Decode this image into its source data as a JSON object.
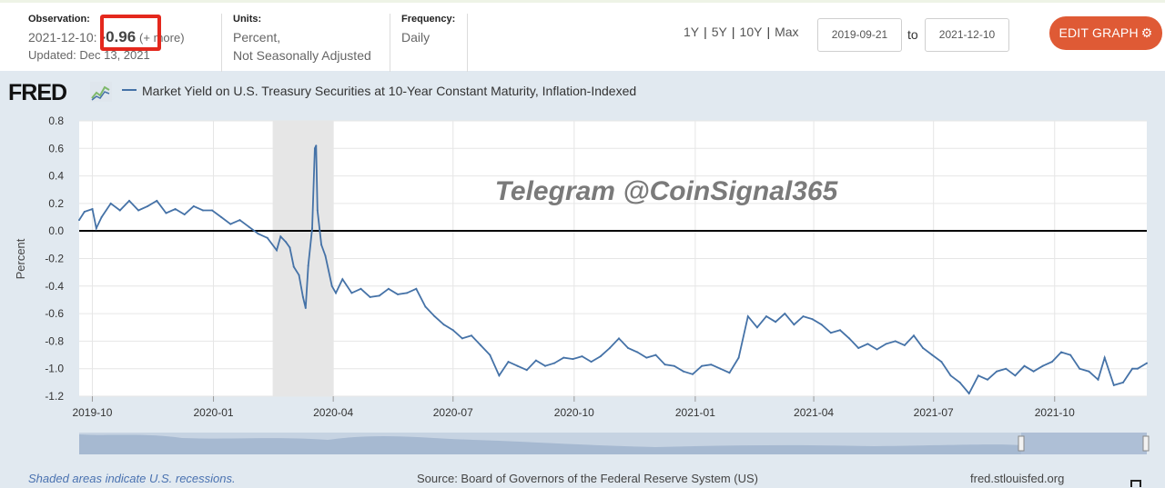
{
  "header": {
    "observation_label": "Observation:",
    "observation_date": "2021-12-10:",
    "observation_value": "-0.96",
    "observation_more": "(+ more)",
    "observation_updated": "Updated: Dec 13, 2021",
    "units_label": "Units:",
    "units_line1": "Percent,",
    "units_line2": "Not Seasonally Adjusted",
    "frequency_label": "Frequency:",
    "frequency_value": "Daily",
    "ranges": [
      "1Y",
      "5Y",
      "10Y",
      "Max"
    ],
    "date_from": "2019-09-21",
    "to_label": "to",
    "date_to": "2021-12-10",
    "edit_label": "EDIT GRAPH",
    "highlight_color": "#e4281d",
    "edit_color": "#df5a35"
  },
  "logo_text": "FRED",
  "watermark": "Telegram @CoinSignal365",
  "footer": {
    "recession_note": "Shaded areas indicate U.S. recessions.",
    "source": "Source: Board of Governors of the Federal Reserve System (US)",
    "site": "fred.stlouisfed.org"
  },
  "chart_data": {
    "type": "line",
    "title": "Market Yield on U.S. Treasury Securities at 10-Year Constant Maturity, Inflation-Indexed",
    "ylabel": "Percent",
    "xlabel": "",
    "ylim": [
      -1.2,
      0.8
    ],
    "yticks": [
      "0.8",
      "0.6",
      "0.4",
      "0.2",
      "0.0",
      "-0.2",
      "-0.4",
      "-0.6",
      "-0.8",
      "-1.0",
      "-1.2"
    ],
    "xticks": [
      "2019-10",
      "2020-01",
      "2020-04",
      "2020-07",
      "2020-10",
      "2021-01",
      "2021-04",
      "2021-07",
      "2021-10"
    ],
    "x_range": [
      "2019-09-21",
      "2021-12-10"
    ],
    "grid": true,
    "line_color": "#4572a7",
    "recession": {
      "start": "2020-02-15",
      "end": "2020-04-01"
    },
    "series": [
      {
        "name": "Market Yield on U.S. Treasury Securities at 10-Year Constant Maturity, Inflation-Indexed",
        "x": [
          "2019-09-21",
          "2019-09-25",
          "2019-10-01",
          "2019-10-04",
          "2019-10-08",
          "2019-10-15",
          "2019-10-22",
          "2019-10-29",
          "2019-11-05",
          "2019-11-12",
          "2019-11-19",
          "2019-11-26",
          "2019-12-03",
          "2019-12-10",
          "2019-12-17",
          "2019-12-24",
          "2019-12-31",
          "2020-01-07",
          "2020-01-14",
          "2020-01-21",
          "2020-01-28",
          "2020-02-04",
          "2020-02-11",
          "2020-02-18",
          "2020-02-21",
          "2020-02-25",
          "2020-02-28",
          "2020-03-02",
          "2020-03-06",
          "2020-03-09",
          "2020-03-11",
          "2020-03-13",
          "2020-03-16",
          "2020-03-18",
          "2020-03-19",
          "2020-03-20",
          "2020-03-23",
          "2020-03-26",
          "2020-03-31",
          "2020-04-03",
          "2020-04-08",
          "2020-04-15",
          "2020-04-22",
          "2020-04-29",
          "2020-05-06",
          "2020-05-13",
          "2020-05-20",
          "2020-05-27",
          "2020-06-03",
          "2020-06-10",
          "2020-06-17",
          "2020-06-24",
          "2020-07-01",
          "2020-07-08",
          "2020-07-15",
          "2020-07-22",
          "2020-07-29",
          "2020-08-05",
          "2020-08-12",
          "2020-08-19",
          "2020-08-26",
          "2020-09-02",
          "2020-09-09",
          "2020-09-16",
          "2020-09-23",
          "2020-09-30",
          "2020-10-07",
          "2020-10-14",
          "2020-10-21",
          "2020-10-28",
          "2020-11-04",
          "2020-11-11",
          "2020-11-18",
          "2020-11-25",
          "2020-12-02",
          "2020-12-09",
          "2020-12-16",
          "2020-12-23",
          "2020-12-30",
          "2021-01-06",
          "2021-01-13",
          "2021-01-20",
          "2021-01-27",
          "2021-02-03",
          "2021-02-10",
          "2021-02-17",
          "2021-02-24",
          "2021-03-03",
          "2021-03-10",
          "2021-03-17",
          "2021-03-24",
          "2021-03-31",
          "2021-04-07",
          "2021-04-14",
          "2021-04-21",
          "2021-04-28",
          "2021-05-05",
          "2021-05-12",
          "2021-05-19",
          "2021-05-26",
          "2021-06-02",
          "2021-06-09",
          "2021-06-16",
          "2021-06-23",
          "2021-06-30",
          "2021-07-07",
          "2021-07-14",
          "2021-07-21",
          "2021-07-28",
          "2021-08-04",
          "2021-08-11",
          "2021-08-18",
          "2021-08-25",
          "2021-09-01",
          "2021-09-08",
          "2021-09-15",
          "2021-09-22",
          "2021-09-29",
          "2021-10-06",
          "2021-10-13",
          "2021-10-20",
          "2021-10-27",
          "2021-11-03",
          "2021-11-08",
          "2021-11-15",
          "2021-11-22",
          "2021-11-29",
          "2021-12-03",
          "2021-12-10"
        ],
        "values": [
          0.08,
          0.14,
          0.16,
          0.02,
          0.1,
          0.2,
          0.15,
          0.22,
          0.15,
          0.18,
          0.22,
          0.13,
          0.16,
          0.12,
          0.18,
          0.15,
          0.15,
          0.1,
          0.05,
          0.08,
          0.03,
          -0.02,
          -0.05,
          -0.14,
          -0.04,
          -0.08,
          -0.12,
          -0.26,
          -0.32,
          -0.48,
          -0.56,
          -0.25,
          0.02,
          0.6,
          0.62,
          0.15,
          -0.1,
          -0.18,
          -0.4,
          -0.45,
          -0.35,
          -0.45,
          -0.42,
          -0.48,
          -0.47,
          -0.42,
          -0.46,
          -0.45,
          -0.42,
          -0.55,
          -0.62,
          -0.68,
          -0.72,
          -0.78,
          -0.76,
          -0.83,
          -0.9,
          -1.05,
          -0.95,
          -0.98,
          -1.01,
          -0.94,
          -0.98,
          -0.96,
          -0.92,
          -0.93,
          -0.91,
          -0.95,
          -0.91,
          -0.85,
          -0.78,
          -0.85,
          -0.88,
          -0.92,
          -0.9,
          -0.97,
          -0.98,
          -1.02,
          -1.04,
          -0.98,
          -0.97,
          -1.0,
          -1.03,
          -0.92,
          -0.62,
          -0.7,
          -0.62,
          -0.66,
          -0.6,
          -0.68,
          -0.62,
          -0.64,
          -0.68,
          -0.74,
          -0.72,
          -0.78,
          -0.85,
          -0.82,
          -0.86,
          -0.82,
          -0.8,
          -0.83,
          -0.76,
          -0.85,
          -0.9,
          -0.95,
          -1.05,
          -1.1,
          -1.18,
          -1.05,
          -1.08,
          -1.02,
          -1.0,
          -1.05,
          -0.98,
          -1.02,
          -0.98,
          -0.95,
          -0.88,
          -0.9,
          -1.0,
          -1.02,
          -1.08,
          -0.92,
          -1.12,
          -1.1,
          -1.0,
          -1.0,
          -0.96
        ]
      }
    ]
  }
}
